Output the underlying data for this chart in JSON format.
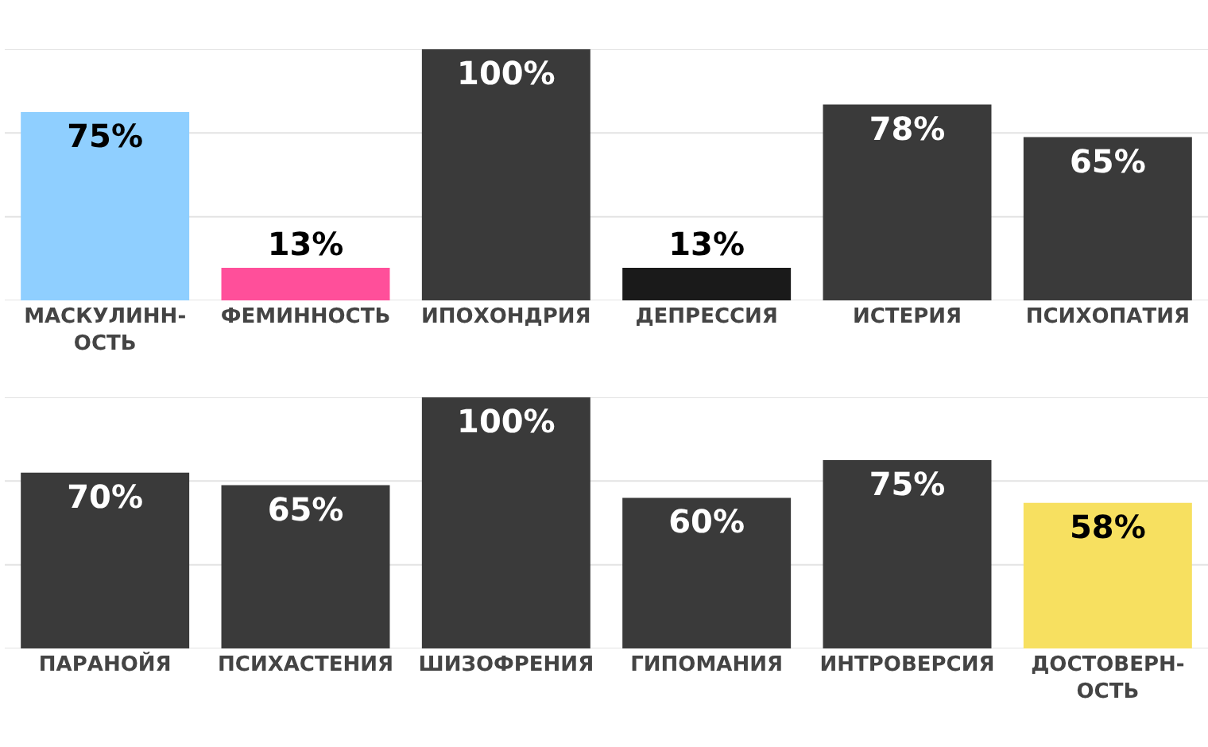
{
  "chart_data": [
    {
      "type": "bar",
      "categories": [
        "МАСКУЛИНН-ОСТЬ",
        "ФЕМИННОСТЬ",
        "ИПОХОНДРИЯ",
        "ДЕПРЕССИЯ",
        "ИСТЕРИЯ",
        "ПСИХОПАТИЯ"
      ],
      "values": [
        75,
        13,
        100,
        13,
        78,
        65
      ],
      "value_labels": [
        "75%",
        "13%",
        "100%",
        "13%",
        "78%",
        "65%"
      ],
      "colors": [
        "#8fcfff",
        "#ff4f9a",
        "#3a3a3a",
        "#1a1a1a",
        "#3a3a3a",
        "#3a3a3a"
      ],
      "ylim": [
        0,
        100
      ],
      "yticks": [
        {
          "value": 0,
          "label": null
        },
        {
          "value": 33.3,
          "label": null
        },
        {
          "value": 66.7,
          "label": null
        },
        {
          "value": 100,
          "label": null
        }
      ],
      "grid": "y",
      "tick_labels": "x"
    },
    {
      "type": "bar",
      "categories": [
        "ПАРАНОЙЯ",
        "ПСИХАСТЕНИЯ",
        "ШИЗОФРЕНИЯ",
        "ГИПОМАНИЯ",
        "ИНТРОВЕРСИЯ",
        "ДОСТОВЕРН-ОСТЬ"
      ],
      "values": [
        70,
        65,
        100,
        60,
        75,
        58
      ],
      "value_labels": [
        "70%",
        "65%",
        "100%",
        "60%",
        "75%",
        "58%"
      ],
      "colors": [
        "#3a3a3a",
        "#3a3a3a",
        "#3a3a3a",
        "#3a3a3a",
        "#3a3a3a",
        "#f7e060"
      ],
      "ylim": [
        0,
        100
      ],
      "yticks": [
        {
          "value": 0,
          "label": null
        },
        {
          "value": 33.3,
          "label": null
        },
        {
          "value": 66.7,
          "label": null
        },
        {
          "value": 100,
          "label": null
        }
      ],
      "grid": "y",
      "tick_labels": "x"
    }
  ]
}
